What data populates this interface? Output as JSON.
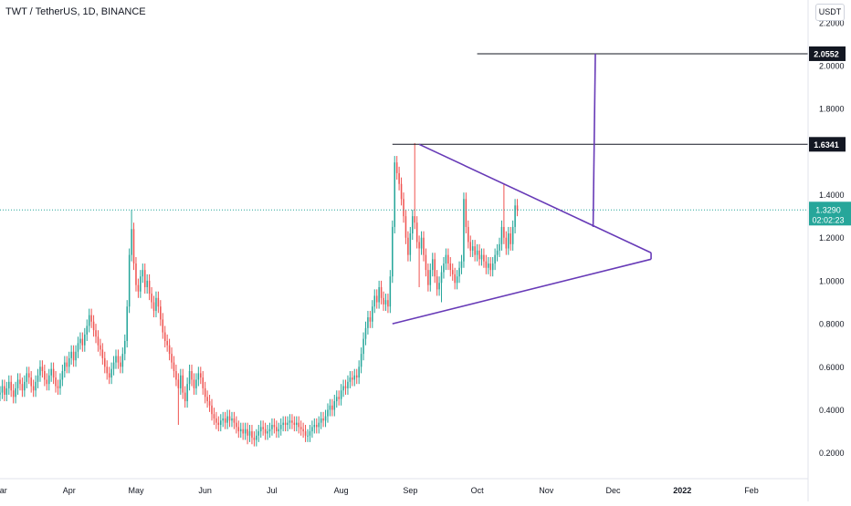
{
  "header": {
    "title": "TWT / TetherUS, 1D, BINANCE",
    "currency_button": "USDT"
  },
  "colors": {
    "up": "#26a69a",
    "down": "#ef5350",
    "triangle": "#673ab7",
    "level_line": "#131722",
    "last_price_line": "#26a69a",
    "axis_text": "#131722"
  },
  "chart_data": {
    "type": "candlestick",
    "symbol": "TWT / TetherUS",
    "interval": "1D",
    "exchange": "BINANCE",
    "ylim": [
      0.08,
      2.305
    ],
    "y_ticks": [
      {
        "value": 2.2,
        "label": "2.2000"
      },
      {
        "value": 2.0,
        "label": "2.0000"
      },
      {
        "value": 1.8,
        "label": "1.8000"
      },
      {
        "value": 1.4,
        "label": "1.4000"
      },
      {
        "value": 1.2,
        "label": "1.2000"
      },
      {
        "value": 1.0,
        "label": "1.0000"
      },
      {
        "value": 0.8,
        "label": "0.8000"
      },
      {
        "value": 0.6,
        "label": "0.6000"
      },
      {
        "value": 0.4,
        "label": "0.4000"
      },
      {
        "value": 0.2,
        "label": "0.2000"
      }
    ],
    "x_start": "2021-03-01",
    "x_end": "2022-02-26",
    "x_ticks": [
      {
        "date": "2021-03-01",
        "label": "Mar"
      },
      {
        "date": "2021-04-01",
        "label": "Apr"
      },
      {
        "date": "2021-05-01",
        "label": "May"
      },
      {
        "date": "2021-06-01",
        "label": "Jun"
      },
      {
        "date": "2021-07-01",
        "label": "Jul"
      },
      {
        "date": "2021-08-01",
        "label": "Aug"
      },
      {
        "date": "2021-09-01",
        "label": "Sep"
      },
      {
        "date": "2021-10-01",
        "label": "Oct"
      },
      {
        "date": "2021-11-01",
        "label": "Nov"
      },
      {
        "date": "2021-12-01",
        "label": "Dec"
      },
      {
        "date": "2022-01-01",
        "label": "2022"
      },
      {
        "date": "2022-02-01",
        "label": "Feb"
      }
    ],
    "candles": {
      "start_date": "2021-03-01",
      "closes": [
        0.48,
        0.51,
        0.47,
        0.5,
        0.53,
        0.49,
        0.46,
        0.5,
        0.54,
        0.52,
        0.49,
        0.53,
        0.57,
        0.55,
        0.51,
        0.49,
        0.53,
        0.56,
        0.6,
        0.58,
        0.54,
        0.52,
        0.56,
        0.59,
        0.55,
        0.51,
        0.5,
        0.54,
        0.58,
        0.62,
        0.6,
        0.64,
        0.67,
        0.63,
        0.67,
        0.71,
        0.73,
        0.7,
        0.75,
        0.79,
        0.84,
        0.81,
        0.77,
        0.74,
        0.7,
        0.68,
        0.64,
        0.6,
        0.57,
        0.55,
        0.59,
        0.62,
        0.65,
        0.62,
        0.6,
        0.66,
        0.72,
        0.88,
        1.12,
        1.24,
        1.08,
        0.98,
        0.95,
        1.02,
        1.05,
        0.97,
        1.0,
        0.94,
        0.9,
        0.86,
        0.92,
        0.88,
        0.82,
        0.76,
        0.72,
        0.7,
        0.66,
        0.62,
        0.58,
        0.54,
        0.5,
        0.56,
        0.48,
        0.44,
        0.52,
        0.58,
        0.54,
        0.5,
        0.54,
        0.57,
        0.55,
        0.5,
        0.46,
        0.44,
        0.42,
        0.38,
        0.36,
        0.34,
        0.33,
        0.35,
        0.36,
        0.34,
        0.37,
        0.35,
        0.36,
        0.34,
        0.32,
        0.3,
        0.31,
        0.29,
        0.31,
        0.28,
        0.3,
        0.27,
        0.26,
        0.28,
        0.3,
        0.32,
        0.31,
        0.29,
        0.3,
        0.31,
        0.33,
        0.32,
        0.3,
        0.31,
        0.33,
        0.34,
        0.33,
        0.34,
        0.35,
        0.34,
        0.33,
        0.34,
        0.32,
        0.31,
        0.3,
        0.28,
        0.28,
        0.3,
        0.32,
        0.33,
        0.32,
        0.34,
        0.36,
        0.35,
        0.37,
        0.4,
        0.42,
        0.4,
        0.44,
        0.46,
        0.45,
        0.49,
        0.51,
        0.5,
        0.53,
        0.55,
        0.54,
        0.56,
        0.55,
        0.6,
        0.66,
        0.73,
        0.78,
        0.83,
        0.81,
        0.88,
        0.93,
        0.9,
        0.97,
        0.92,
        0.89,
        0.91,
        0.88,
        1.02,
        1.25,
        1.55,
        1.5,
        1.45,
        1.38,
        1.3,
        1.2,
        1.12,
        1.22,
        1.3,
        1.27,
        1.18,
        1.15,
        1.2,
        1.12,
        1.05,
        0.98,
        1.05,
        1.1,
        1.02,
        0.96,
        0.99,
        1.04,
        1.08,
        1.12,
        1.08,
        1.05,
        1.03,
        0.99,
        1.02,
        1.06,
        1.09,
        1.38,
        1.25,
        1.18,
        1.14,
        1.16,
        1.12,
        1.14,
        1.1,
        1.12,
        1.09,
        1.06,
        1.08,
        1.05,
        1.08,
        1.12,
        1.14,
        1.17,
        1.25,
        1.2,
        1.15,
        1.22,
        1.17,
        1.25,
        1.35,
        1.33
      ],
      "wick_high": 0.03,
      "wick_low": 0.03,
      "extremes": [
        {
          "day": 59,
          "high": 1.33
        },
        {
          "day": 80,
          "low": 0.33
        },
        {
          "day": 111,
          "low": 0.24
        },
        {
          "day": 186,
          "high": 1.64
        },
        {
          "day": 188,
          "low": 0.97
        },
        {
          "day": 198,
          "low": 0.9
        },
        {
          "day": 226,
          "high": 1.45
        },
        {
          "day": 248,
          "low": 1.02
        }
      ]
    },
    "horizontal_levels": [
      {
        "value": 2.0552,
        "label": "2.0552",
        "start_date": "2021-10-01"
      },
      {
        "value": 1.6341,
        "label": "1.6341",
        "start_date": "2021-08-24"
      }
    ],
    "last_price": {
      "value": 1.329,
      "label": "1.3290",
      "countdown": "02:02:23"
    },
    "triangle_pattern": {
      "upper": [
        {
          "date": "2021-09-05",
          "value": 1.6341
        },
        {
          "date": "2021-12-18",
          "value": 1.13
        }
      ],
      "lower": [
        {
          "date": "2021-08-24",
          "value": 0.8
        },
        {
          "date": "2021-12-18",
          "value": 1.1
        }
      ],
      "breakout": [
        {
          "date": "2021-11-22",
          "value": 1.25
        },
        {
          "date": "2021-11-23",
          "value": 2.0552
        }
      ]
    }
  }
}
